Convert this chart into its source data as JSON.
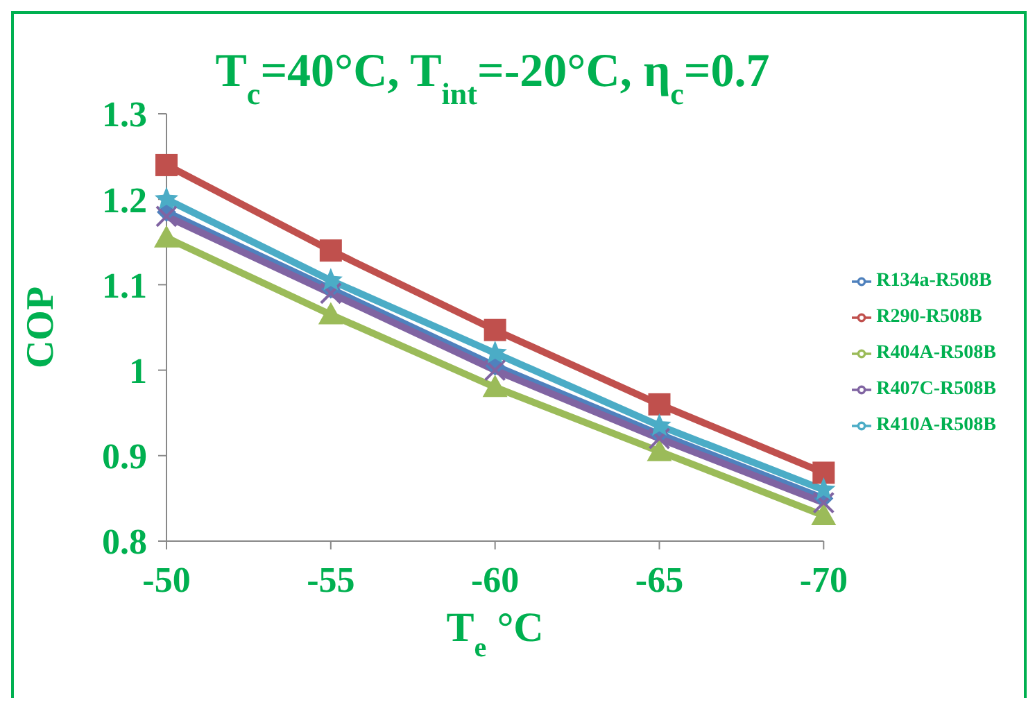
{
  "chart_data": {
    "type": "line",
    "title": "T$_{c}$=40°C, T$_{int}$=-20°C, η$_{c}$=0.7",
    "xlabel": "T$_{e}$ °C",
    "ylabel": "COP",
    "categories": [
      "-50",
      "-55",
      "-60",
      "-65",
      "-70"
    ],
    "series": [
      {
        "name": "R134a-R508B",
        "color": "#4f81bd",
        "marker": "diamond",
        "values": [
          1.185,
          1.095,
          1.005,
          0.925,
          0.85
        ]
      },
      {
        "name": "R290-R508B",
        "color": "#c0504d",
        "marker": "square",
        "values": [
          1.24,
          1.14,
          1.047,
          0.96,
          0.88
        ]
      },
      {
        "name": "R404A-R508B",
        "color": "#9bbb59",
        "marker": "triangle",
        "values": [
          1.155,
          1.065,
          0.98,
          0.905,
          0.83
        ]
      },
      {
        "name": "R407C-R508B",
        "color": "#8064a2",
        "marker": "cross",
        "values": [
          1.18,
          1.09,
          1.0,
          0.92,
          0.845
        ]
      },
      {
        "name": "R410A-R508B",
        "color": "#4bacc6",
        "marker": "star",
        "values": [
          1.2,
          1.105,
          1.02,
          0.935,
          0.86
        ]
      }
    ],
    "ylim": [
      0.8,
      1.3
    ],
    "yticks": [
      0.8,
      0.9,
      1,
      1.1,
      1.2,
      1.3
    ],
    "grid": false,
    "legend": "right"
  }
}
